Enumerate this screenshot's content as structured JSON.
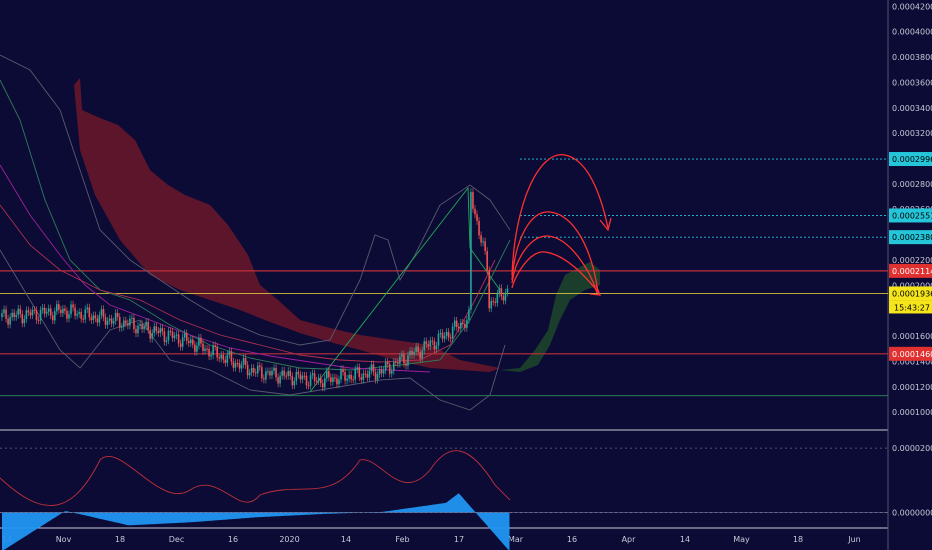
{
  "colors": {
    "background": "#0b0b35",
    "axis_text": "#c8c8d8",
    "up_candle": "#26a69a",
    "down_candle": "#ef5350",
    "cloud_bear": "#7a1a2a",
    "cloud_bull": "#1e4a2a",
    "arrow": "#ff3030",
    "osc_fill": "#2196f3",
    "h_line_red": "#c0303a",
    "h_line_green": "#2e8b57",
    "h_line_cyan": "#26c6da"
  },
  "chart_data": [
    {
      "type": "line",
      "title": "",
      "xlabel": "",
      "ylabel": "",
      "x_ticks": [
        "14",
        "Nov",
        "18",
        "Dec",
        "16",
        "2020",
        "14",
        "Feb",
        "17",
        "Mar",
        "16",
        "Apr",
        "14",
        "May",
        "18",
        "Jun"
      ],
      "y_ticks": [
        "0.0004200",
        "0.0004000",
        "0.0003800",
        "0.0003600",
        "0.0003400",
        "0.0003200",
        "0.0003000",
        "0.0002800",
        "0.0002600",
        "0.0002400",
        "0.0002200",
        "0.0002000",
        "0.0001800",
        "0.0001600",
        "0.0001400",
        "0.0001200",
        "0.0001000"
      ],
      "ylim": [
        8.75e-05,
        0.000425
      ],
      "price_x": [
        "14",
        "Nov",
        "18",
        "Dec",
        "16",
        "2020",
        "14",
        "Feb",
        "17"
      ],
      "price_close": [
        0.000175,
        0.00018,
        0.00017,
        0.000155,
        0.000132,
        0.000125,
        0.000132,
        0.00016,
        0.000196
      ],
      "price_high": 0.000278,
      "price_levels": [
        {
          "label": "0.0002996",
          "value": 0.0002996,
          "color": "cyan"
        },
        {
          "label": "0.0002551",
          "value": 0.0002551,
          "color": "cyan"
        },
        {
          "label": "0.0002380",
          "value": 0.000238,
          "color": "cyan"
        },
        {
          "label": "0.0002114",
          "value": 0.0002114,
          "color": "red"
        },
        {
          "label": "0.0001936",
          "value": 0.0001936,
          "color": "yellow"
        },
        {
          "label": "0.0001460",
          "value": 0.000146,
          "color": "red"
        },
        {
          "label": "0.0001130",
          "value": 0.000113,
          "color": "green"
        }
      ],
      "countdown": "15:43:27"
    },
    {
      "type": "area",
      "title": "",
      "y_ticks": [
        "0.0000200",
        "0.0000000"
      ],
      "ylim": [
        -4.5e-06,
        2.5e-05
      ],
      "x": [
        "14",
        "Nov",
        "18",
        "Dec",
        "16",
        "2020",
        "14",
        "Feb",
        "17"
      ],
      "values": [
        -1.2e-05,
        5e-07,
        -4e-06,
        -3e-06,
        -1.5e-06,
        -5e-07,
        2e-07,
        3e-06,
        1.8e-05
      ]
    }
  ]
}
